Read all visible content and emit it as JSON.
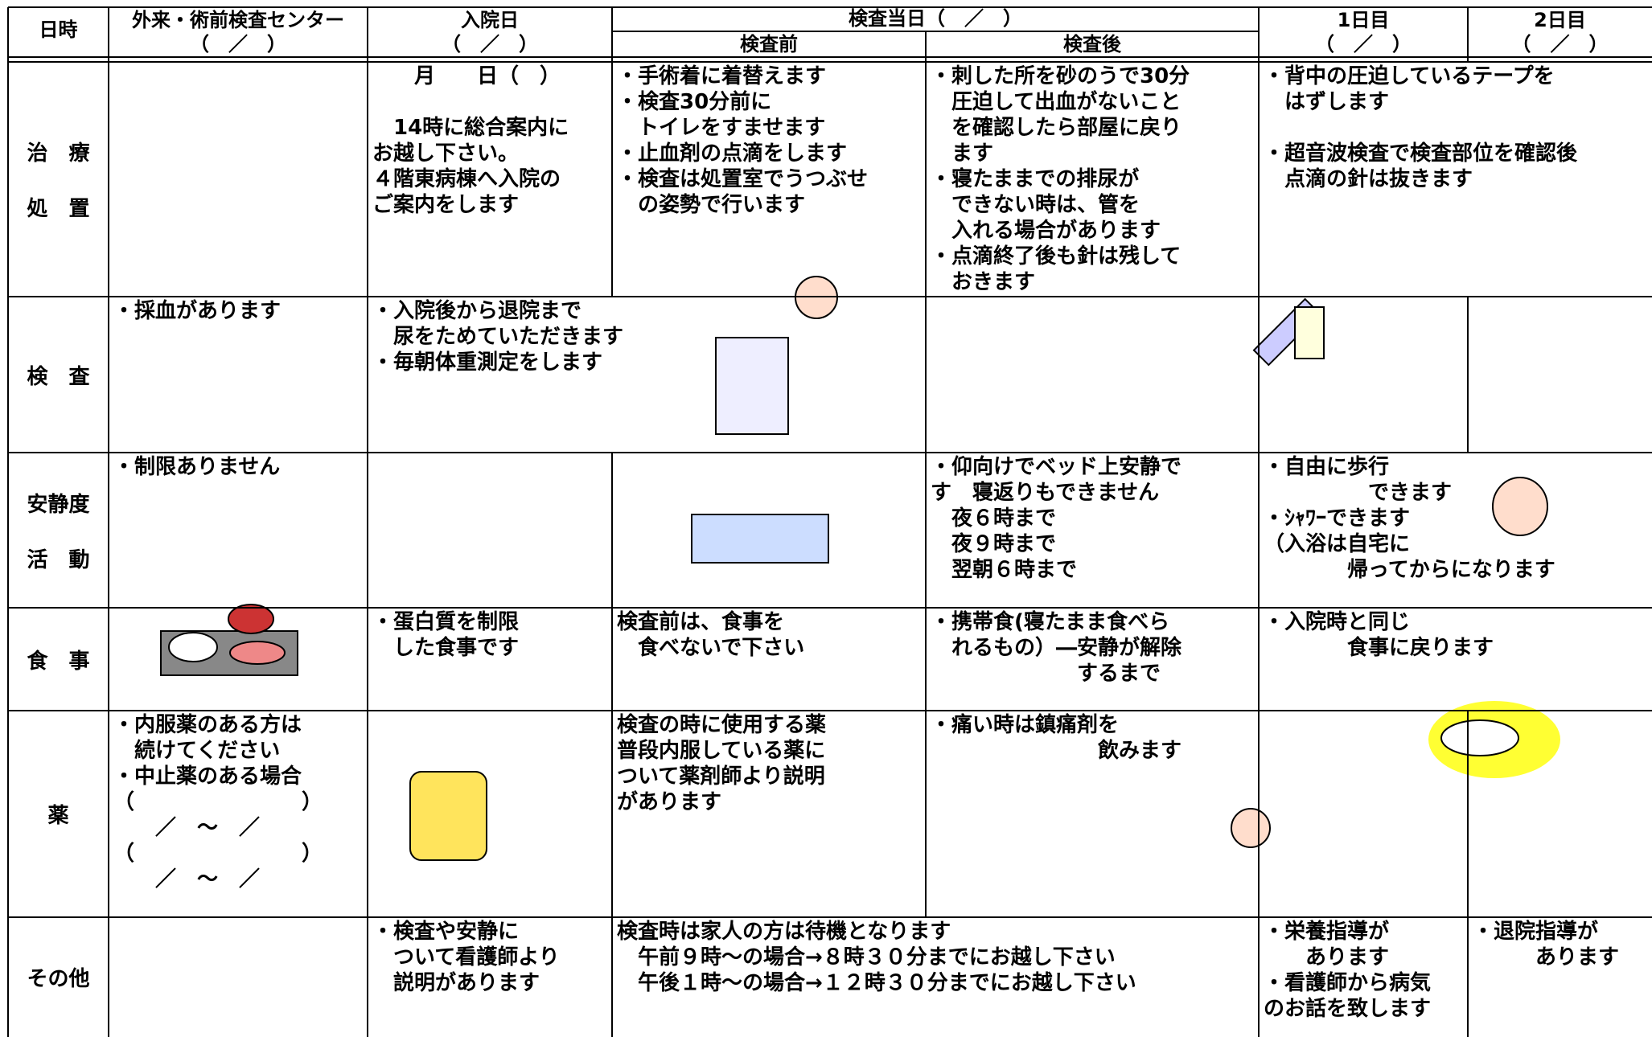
{
  "header": {
    "date_label": "日時",
    "columns": [
      {
        "title": "外来・術前検査センター",
        "date": "（　／　）"
      },
      {
        "title": "入院日",
        "date": "（　／　）"
      },
      {
        "title": "1日目",
        "date": "（　／　）"
      },
      {
        "title": "2日目",
        "date": "（　／　）"
      }
    ],
    "exam_day": {
      "title": "検査当日（　／　）",
      "before": "検査前",
      "after": "検査後"
    }
  },
  "rows": [
    {
      "label": [
        "治　療",
        "処　置"
      ],
      "cells": [
        [],
        [
          [
            "　　月　　日（　）"
          ],
          [
            "　14時に総合案内に",
            "お越し下さい。",
            "４階東病棟へ入院の",
            "ご案内をします"
          ]
        ],
        [
          [
            "・手術着に着替えます",
            "・検査30分前に",
            "　トイレをすませます",
            "・止血剤の点滴をします",
            "・検査は処置室でうつぶせ",
            "　の姿勢で行います"
          ]
        ],
        [
          [
            "・刺した所を砂のうで30分",
            "　圧迫して出血がないこと",
            "　を確認したら部屋に戻り",
            "　ます",
            "・寝たままでの排尿が",
            "　できない時は、管を",
            "　入れる場合があります",
            "・点滴終了後も針は残して",
            "　おきます"
          ]
        ],
        [
          [
            "・背中の圧迫しているテープを",
            "　はずします"
          ],
          [
            "・超音波検査で検査部位を確認後",
            "　点滴の針は抜きます"
          ]
        ]
      ]
    },
    {
      "label": [
        "検　査"
      ],
      "cells": [
        [
          [
            "・採血があります"
          ]
        ],
        [
          [
            "・入院後から退院まで",
            "　尿をためていただきます",
            "・毎朝体重測定をします"
          ]
        ],
        [],
        [],
        []
      ]
    },
    {
      "label": [
        "安静度",
        "活　動"
      ],
      "cells": [
        [
          [
            "・制限ありません"
          ]
        ],
        [],
        [],
        [
          [
            "・仰向けでベッド上安静で",
            "す　寝返りもできません",
            "　夜６時まで",
            "　夜９時まで",
            "　翌朝６時まで"
          ]
        ],
        [
          [
            "・自由に歩行",
            "　　　　　できます",
            "・ｼｬﾜｰできます",
            "（入浴は自宅に",
            "　　　　帰ってからになります"
          ]
        ]
      ]
    },
    {
      "label": [
        "食　事"
      ],
      "cells": [
        [],
        [
          [
            "・蛋白質を制限",
            "　した食事です"
          ]
        ],
        [
          [
            "検査前は、食事を",
            "　食べないで下さい"
          ]
        ],
        [
          [
            "・携帯食(寝たまま食べら",
            "　れるもの）―安静が解除",
            "　　　　　　　するまで"
          ]
        ],
        [
          [
            "・入院時と同じ",
            "　　　　食事に戻ります"
          ]
        ]
      ]
    },
    {
      "label": [
        "薬"
      ],
      "cells": [
        [
          [
            "・内服薬のある方は",
            "　続けてください",
            "・中止薬のある場合",
            "（　　　　　　　　）",
            "　　／　～　／",
            "（　　　　　　　　）",
            "　　／　～　／"
          ]
        ],
        [],
        [
          [
            "検査の時に使用する薬",
            "普段内服している薬に",
            "ついて薬剤師より説明",
            "があります"
          ]
        ],
        [
          [
            "・痛い時は鎮痛剤を",
            "　　　　　　　　飲みます"
          ]
        ],
        [],
        []
      ]
    },
    {
      "label": [
        "その他"
      ],
      "cells": [
        [],
        [
          [
            "・検査や安静に",
            "　ついて看護師より",
            "　説明があります"
          ]
        ],
        [
          [
            "検査時は家人の方は待機となります",
            "　午前９時～の場合→８時３０分までにお越し下さい",
            "　午後１時～の場合→１２時３０分までにお越し下さい"
          ]
        ],
        [
          [
            "・栄養指導が",
            "　　あります",
            "・看護師から病気",
            "のお話を致します"
          ]
        ],
        [
          [
            "・退院指導が",
            "　　　あります"
          ]
        ]
      ]
    }
  ]
}
